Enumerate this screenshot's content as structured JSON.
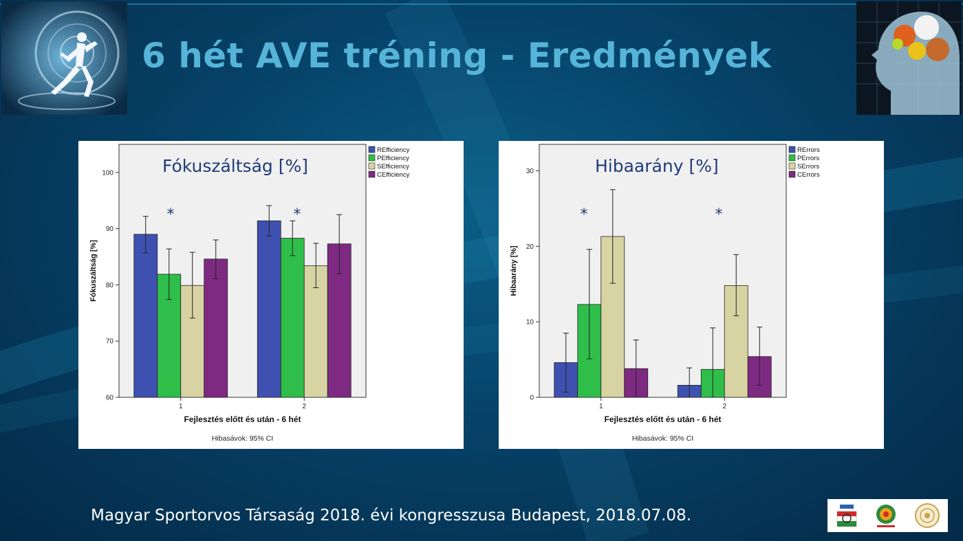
{
  "slide": {
    "title": "6 hét AVE tréning - Eredmények",
    "footer": "Magyar Sportorvos Társaság 2018. évi kongresszusa Budapest, 2018.07.08.",
    "title_color": "#56b4d8"
  },
  "series_colors": {
    "R": "#3f51b0",
    "P": "#2fbe4a",
    "S": "#d8d3a3",
    "C": "#7e2a82"
  },
  "chart_data": [
    {
      "type": "bar",
      "title": "Fókuszáltság [%]",
      "xlabel": "Fejlesztés előtt és után - 6 hét",
      "ylabel": "Fókuszáltság [%]",
      "note": "Hibasávok: 95% CI",
      "categories": [
        "1",
        "2"
      ],
      "ylim": [
        60,
        105
      ],
      "yticks": [
        60,
        70,
        80,
        90,
        100
      ],
      "grid": false,
      "legend": "top-right",
      "significant_categories": [
        "1",
        "2"
      ],
      "significance_marker": "*",
      "series": [
        {
          "name": "REfficiency",
          "color_key": "R",
          "values": [
            89.0,
            91.4
          ],
          "ci_low": [
            85.7,
            88.7
          ],
          "ci_high": [
            92.2,
            94.1
          ]
        },
        {
          "name": "PEfficiency",
          "color_key": "P",
          "values": [
            81.9,
            88.3
          ],
          "ci_low": [
            77.4,
            85.2
          ],
          "ci_high": [
            86.4,
            91.4
          ]
        },
        {
          "name": "SEfficiency",
          "color_key": "S",
          "values": [
            79.9,
            83.4
          ],
          "ci_low": [
            74.1,
            79.5
          ],
          "ci_high": [
            85.8,
            87.4
          ]
        },
        {
          "name": "CEfficiency",
          "color_key": "C",
          "values": [
            84.6,
            87.3
          ],
          "ci_low": [
            81.1,
            82.0
          ],
          "ci_high": [
            88.0,
            92.5
          ]
        }
      ]
    },
    {
      "type": "bar",
      "title": "Hibaarány [%]",
      "xlabel": "Fejlesztés előtt és után - 6 hét",
      "ylabel": "Hibaarány [%]",
      "note": "Hibasávok: 95% CI",
      "categories": [
        "1",
        "2"
      ],
      "ylim": [
        0,
        33.5
      ],
      "yticks": [
        0,
        10,
        20,
        30
      ],
      "grid": false,
      "legend": "top-right",
      "significant_categories": [
        "1",
        "2"
      ],
      "significance_marker": "*",
      "series": [
        {
          "name": "RErrors",
          "color_key": "R",
          "values": [
            4.6,
            1.6
          ],
          "ci_low": [
            0.7,
            0.0
          ],
          "ci_high": [
            8.5,
            3.9
          ]
        },
        {
          "name": "PErrors",
          "color_key": "P",
          "values": [
            12.3,
            3.7
          ],
          "ci_low": [
            5.1,
            0.0
          ],
          "ci_high": [
            19.6,
            9.2
          ]
        },
        {
          "name": "SErrors",
          "color_key": "S",
          "values": [
            21.3,
            14.8
          ],
          "ci_low": [
            15.1,
            10.8
          ],
          "ci_high": [
            27.5,
            18.9
          ]
        },
        {
          "name": "CErrors",
          "color_key": "C",
          "values": [
            3.8,
            5.4
          ],
          "ci_low": [
            0.0,
            1.6
          ],
          "ci_high": [
            7.6,
            9.3
          ]
        }
      ]
    }
  ]
}
